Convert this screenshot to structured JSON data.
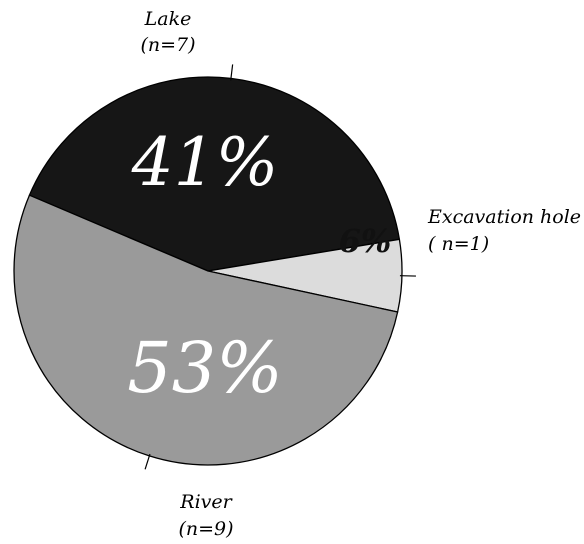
{
  "chart_data": {
    "type": "pie",
    "slices": [
      {
        "category": "Lake",
        "count_label": "(n=7)",
        "value": 41,
        "percent_label": "41%",
        "color": "#161616",
        "text_color": "#ffffff"
      },
      {
        "category": "Excavation hole",
        "count_label": "( n=1)",
        "value": 6,
        "percent_label": "6%",
        "color": "#dcdcdc",
        "text_color": "#111111"
      },
      {
        "category": "River",
        "count_label": "(n=9)",
        "value": 53,
        "percent_label": "53%",
        "color": "#9a9a9a",
        "text_color": "#ffffff"
      }
    ],
    "start_angle_deg": 157,
    "direction": "clockwise",
    "edge_color": "#000000"
  }
}
